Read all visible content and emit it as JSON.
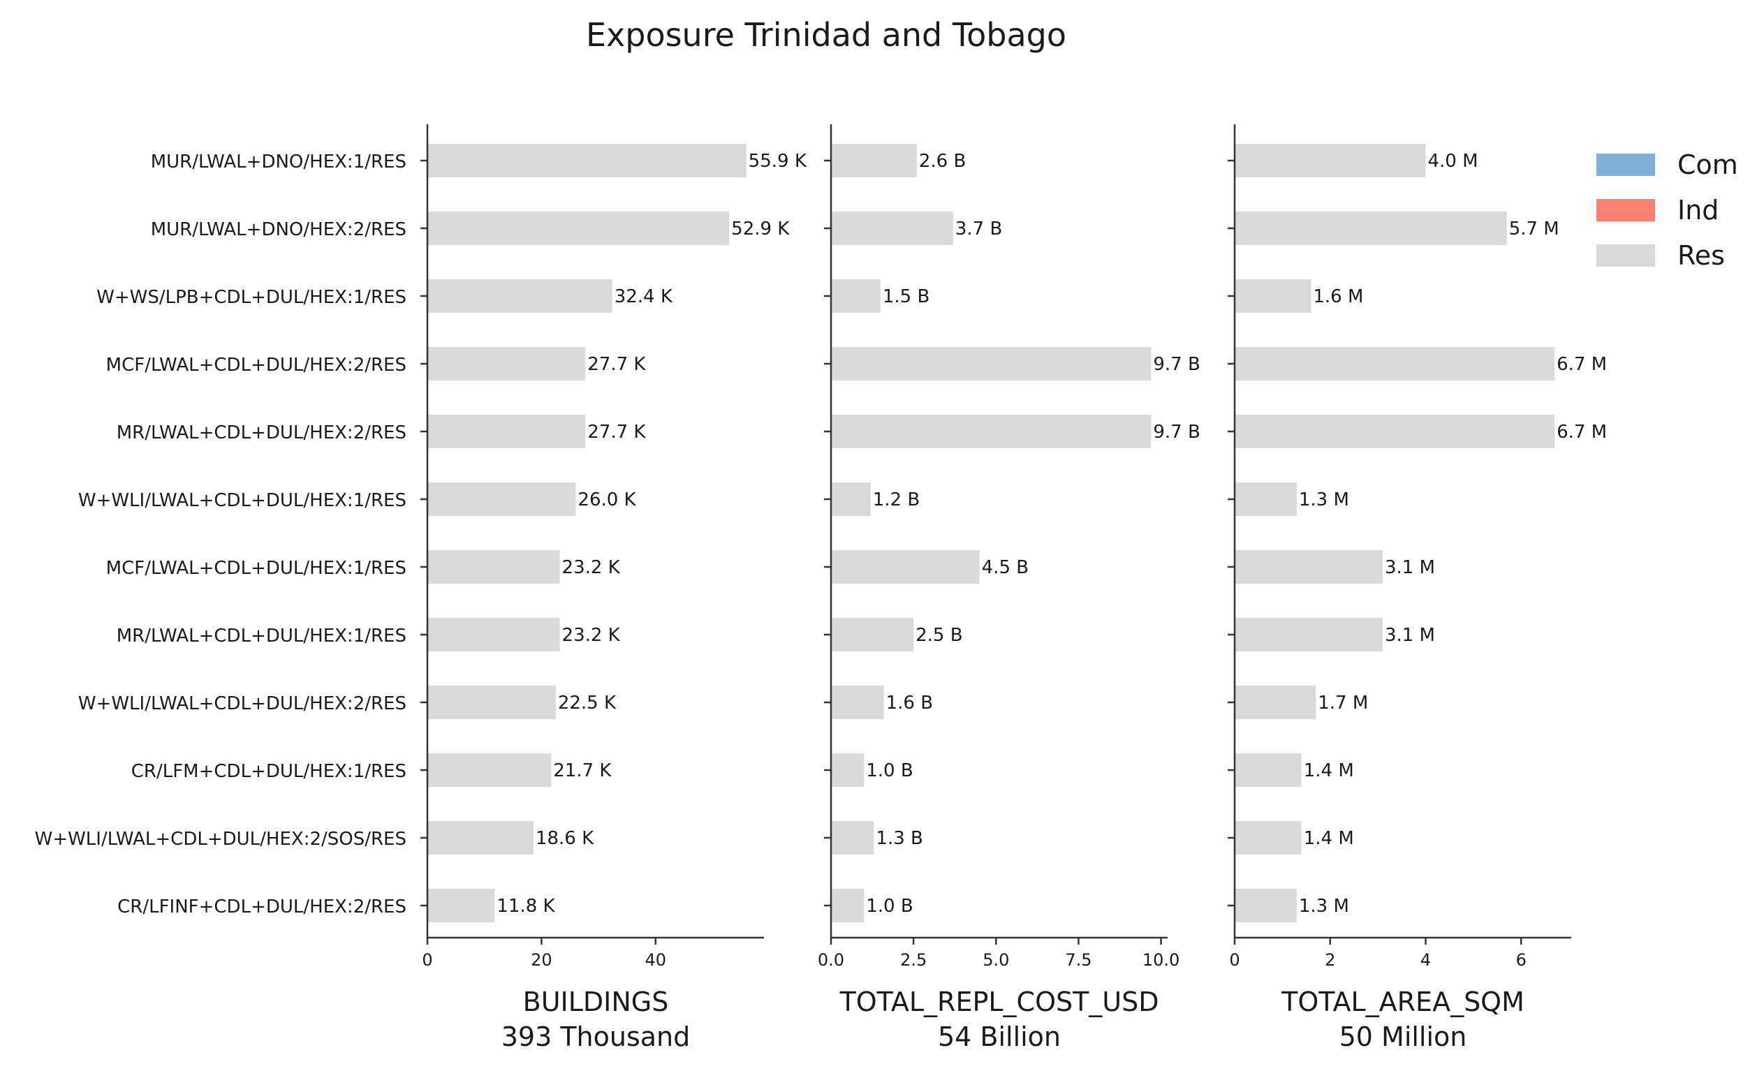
{
  "chart_data": {
    "type": "bar",
    "orientation": "horizontal",
    "title": "Exposure Trinidad and Tobago",
    "categories": [
      "MUR/LWAL+DNO/HEX:1/RES",
      "MUR/LWAL+DNO/HEX:2/RES",
      "W+WS/LPB+CDL+DUL/HEX:1/RES",
      "MCF/LWAL+CDL+DUL/HEX:2/RES",
      "MR/LWAL+CDL+DUL/HEX:2/RES",
      "W+WLI/LWAL+CDL+DUL/HEX:1/RES",
      "MCF/LWAL+CDL+DUL/HEX:1/RES",
      "MR/LWAL+CDL+DUL/HEX:1/RES",
      "W+WLI/LWAL+CDL+DUL/HEX:2/RES",
      "CR/LFM+CDL+DUL/HEX:1/RES",
      "W+WLI/LWAL+CDL+DUL/HEX:2/SOS/RES",
      "CR/LFINF+CDL+DUL/HEX:2/RES"
    ],
    "legend": {
      "placement": "top-right",
      "entries": [
        {
          "name": "Com",
          "color": "#7fb0d6"
        },
        {
          "name": "Ind",
          "color": "#fa8072"
        },
        {
          "name": "Res",
          "color": "#d9d9d9"
        }
      ]
    },
    "grid": false,
    "panels": [
      {
        "xlabel": "BUILDINGS",
        "total_label": "393 Thousand",
        "values": [
          55.9,
          52.9,
          32.4,
          27.7,
          27.7,
          26.0,
          23.2,
          23.2,
          22.5,
          21.7,
          18.6,
          11.8
        ],
        "value_labels": [
          "55.9 K",
          "52.9 K",
          "32.4 K",
          "27.7 K",
          "27.7 K",
          "26.0 K",
          "23.2 K",
          "23.2 K",
          "22.5 K",
          "21.7 K",
          "18.6 K",
          "11.8 K"
        ],
        "xlim": [
          0,
          59
        ],
        "ticks": [
          0,
          20,
          40
        ],
        "tick_labels": [
          "0",
          "20",
          "40"
        ],
        "series": "Res"
      },
      {
        "xlabel": "TOTAL_REPL_COST_USD",
        "total_label": "54 Billion",
        "values": [
          2.6,
          3.7,
          1.5,
          9.7,
          9.7,
          1.2,
          4.5,
          2.5,
          1.6,
          1.0,
          1.3,
          1.0
        ],
        "value_labels": [
          "2.6 B",
          "3.7 B",
          "1.5 B",
          "9.7 B",
          "9.7 B",
          "1.2 B",
          "4.5 B",
          "2.5 B",
          "1.6 B",
          "1.0 B",
          "1.3 B",
          "1.0 B"
        ],
        "xlim": [
          0,
          10.2
        ],
        "ticks": [
          0,
          2.5,
          5.0,
          7.5,
          10.0
        ],
        "tick_labels": [
          "0.0",
          "2.5",
          "5.0",
          "7.5",
          "10.0"
        ],
        "series": "Res"
      },
      {
        "xlabel": "TOTAL_AREA_SQM",
        "total_label": "50 Million",
        "values": [
          4.0,
          5.7,
          1.6,
          6.7,
          6.7,
          1.3,
          3.1,
          3.1,
          1.7,
          1.4,
          1.4,
          1.3
        ],
        "value_labels": [
          "4.0 M",
          "5.7 M",
          "1.6 M",
          "6.7 M",
          "6.7 M",
          "1.3 M",
          "3.1 M",
          "3.1 M",
          "1.7 M",
          "1.4 M",
          "1.4 M",
          "1.3 M"
        ],
        "xlim": [
          0,
          7.05
        ],
        "ticks": [
          0,
          2,
          4,
          6
        ],
        "tick_labels": [
          "0",
          "2",
          "4",
          "6"
        ],
        "series": "Res"
      }
    ]
  }
}
